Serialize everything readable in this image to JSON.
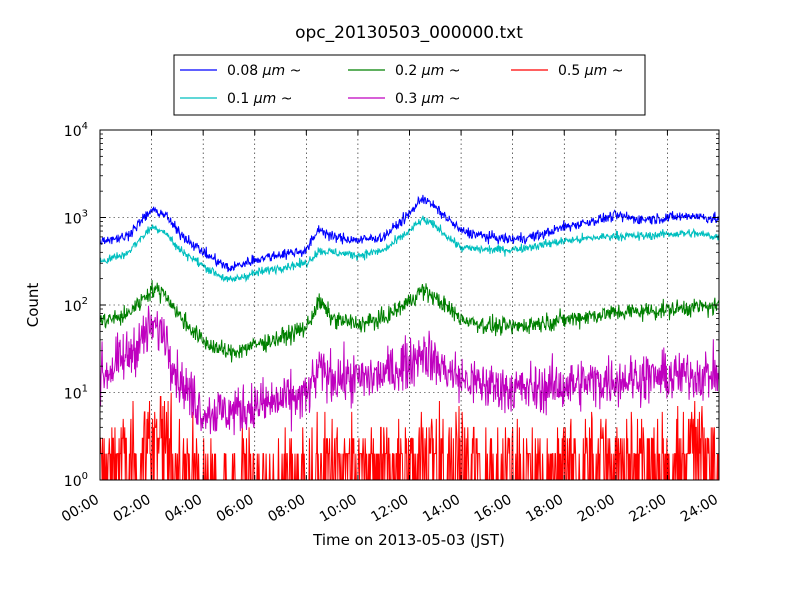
{
  "chart_data": {
    "type": "line",
    "title": "opc_20130503_000000.txt",
    "xlabel": "Time on 2013-05-03 (JST)",
    "ylabel": "Count",
    "y_scale": "log",
    "ylim": [
      1,
      10000
    ],
    "y_ticks": [
      {
        "base": "10",
        "exp": "0"
      },
      {
        "base": "10",
        "exp": "1"
      },
      {
        "base": "10",
        "exp": "2"
      },
      {
        "base": "10",
        "exp": "3"
      },
      {
        "base": "10",
        "exp": "4"
      }
    ],
    "x_ticks": [
      "00:00",
      "02:00",
      "04:00",
      "06:00",
      "08:00",
      "10:00",
      "12:00",
      "14:00",
      "16:00",
      "18:00",
      "20:00",
      "22:00",
      "24:00"
    ],
    "xlim_hours": [
      0,
      24
    ],
    "grid": true,
    "legend_placement": "top-center (above plot)",
    "x_hours": [
      0,
      1,
      2,
      2.5,
      3,
      4,
      5,
      6,
      7,
      8,
      8.5,
      9,
      10,
      11,
      12,
      12.5,
      13,
      14,
      15,
      16,
      17,
      18,
      19,
      20,
      21,
      22,
      23,
      24
    ],
    "series": [
      {
        "name": "0.08",
        "unit": "μm",
        "suffix": "~",
        "color": "#0000ff",
        "noise": 0.06,
        "values": [
          550,
          600,
          1200,
          1100,
          700,
          400,
          260,
          330,
          380,
          420,
          750,
          600,
          550,
          600,
          1100,
          1700,
          1300,
          700,
          600,
          560,
          620,
          780,
          900,
          1050,
          950,
          1000,
          1050,
          950
        ]
      },
      {
        "name": "0.1",
        "unit": "μm",
        "suffix": "~",
        "color": "#00bfbf",
        "noise": 0.05,
        "values": [
          320,
          380,
          780,
          700,
          450,
          280,
          190,
          230,
          270,
          300,
          420,
          400,
          370,
          420,
          700,
          950,
          800,
          450,
          430,
          430,
          480,
          540,
          580,
          620,
          610,
          650,
          660,
          600
        ]
      },
      {
        "name": "0.2",
        "unit": "μm",
        "suffix": "~",
        "color": "#008000",
        "noise": 0.1,
        "values": [
          65,
          75,
          150,
          140,
          80,
          38,
          28,
          35,
          42,
          55,
          110,
          70,
          60,
          70,
          110,
          150,
          120,
          70,
          58,
          56,
          62,
          68,
          75,
          82,
          85,
          88,
          95,
          95
        ]
      },
      {
        "name": "0.3",
        "unit": "μm",
        "suffix": "~",
        "color": "#bf00bf",
        "noise": 0.28,
        "values": [
          15,
          25,
          55,
          50,
          15,
          6,
          6,
          7,
          8,
          9,
          18,
          15,
          14,
          16,
          22,
          30,
          22,
          14,
          12,
          11,
          11,
          12,
          13,
          14,
          15,
          15,
          16,
          16
        ]
      },
      {
        "name": "0.5",
        "unit": "μm",
        "suffix": "~",
        "color": "#ff0000",
        "noise": 0.45,
        "values": [
          2,
          2,
          4,
          4,
          2,
          1.3,
          1.3,
          1.4,
          1.4,
          1.5,
          2,
          1.8,
          1.6,
          1.8,
          2.5,
          3.5,
          2.5,
          2,
          1.8,
          1.8,
          1.9,
          2,
          2.1,
          2.3,
          2.4,
          2.5,
          2.6,
          2.6
        ]
      }
    ]
  }
}
